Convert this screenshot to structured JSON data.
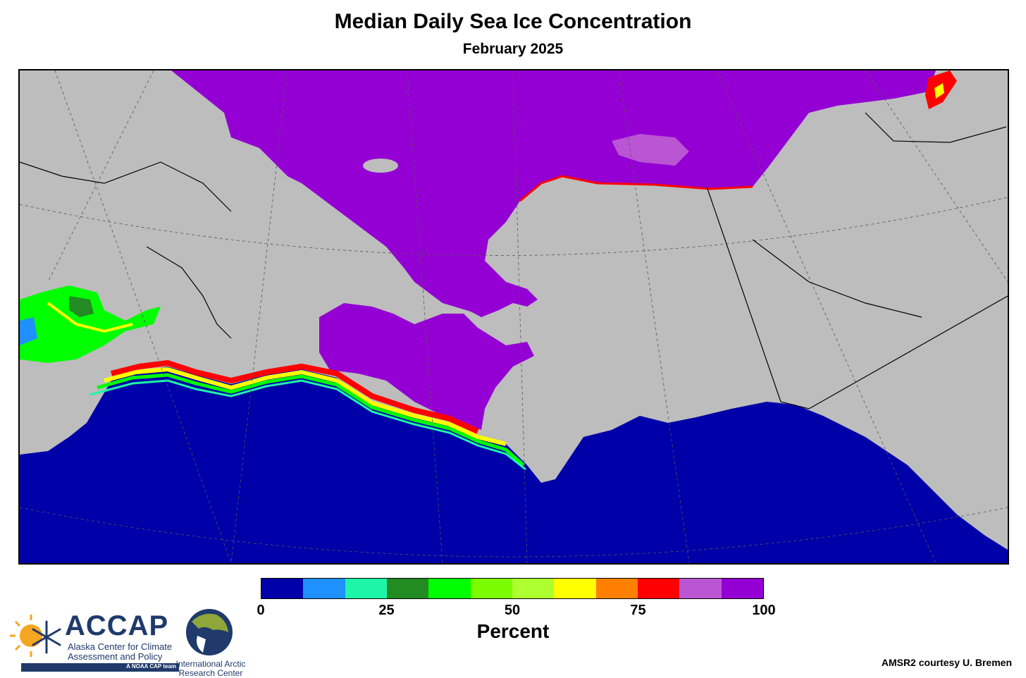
{
  "title": "Median Daily Sea Ice Concentration",
  "subtitle": "February 2025",
  "colorbar": {
    "label": "Percent",
    "colors": [
      "#0000a8",
      "#1e90ff",
      "#1ef5a8",
      "#228b22",
      "#00ff00",
      "#7cfc00",
      "#adff2f",
      "#ffff00",
      "#ff7f00",
      "#ff0000",
      "#ba55d3",
      "#9400d3"
    ],
    "ticks": [
      {
        "value": 0,
        "label": "0"
      },
      {
        "value": 25,
        "label": "25"
      },
      {
        "value": 50,
        "label": "50"
      },
      {
        "value": 75,
        "label": "75"
      },
      {
        "value": 100,
        "label": "100"
      }
    ],
    "range": [
      0,
      100
    ]
  },
  "credit": "AMSR2 courtesy U. Bremen",
  "logos": {
    "accap": {
      "name": "ACCAP",
      "line1": "Alaska Center for Climate",
      "line2": "Assessment and Policy",
      "tag": "A NOAA CAP team"
    },
    "iarc": {
      "line1": "International Arctic",
      "line2": "Research Center"
    }
  },
  "map_colors": {
    "land": "#bdbdbd",
    "ocean": "#0000a8",
    "ice_full": "#9400d3"
  }
}
